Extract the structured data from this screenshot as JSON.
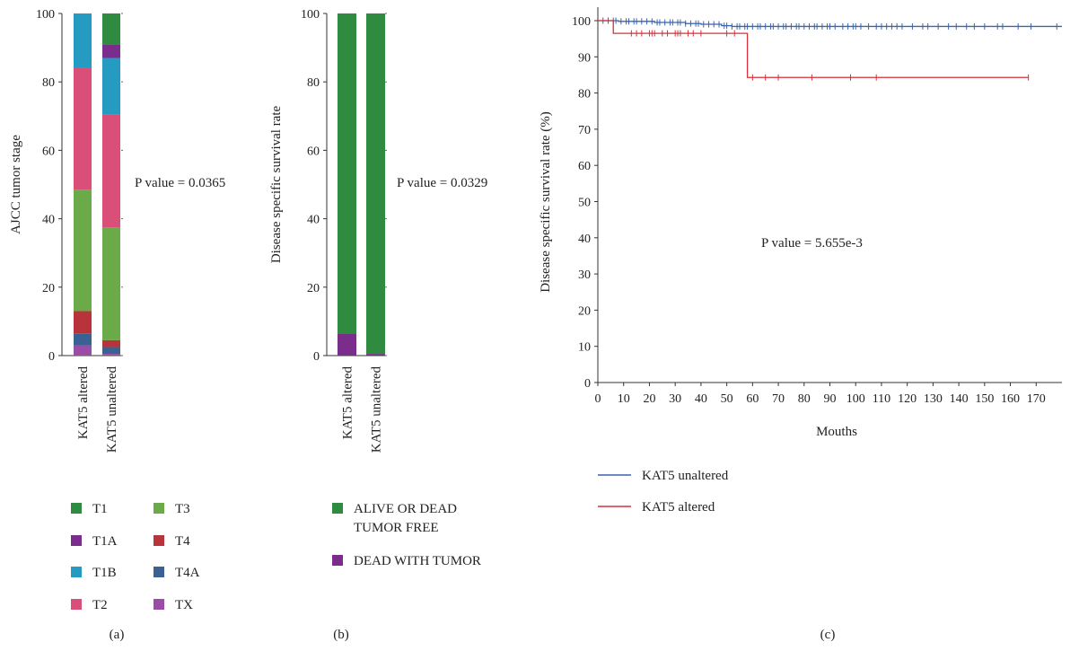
{
  "chart_data": [
    {
      "panel": "(a)",
      "type": "bar",
      "stacked": true,
      "ylabel": "AJCC tumor stage",
      "ylim": [
        0,
        100
      ],
      "yticks": [
        "0",
        "20",
        "40",
        "60",
        "80",
        "100"
      ],
      "categories": [
        "KAT5 altered",
        "KAT5 unaltered"
      ],
      "annotation": "P value = 0.0365",
      "legend": [
        {
          "label": "T1",
          "color": "#2e8b3f"
        },
        {
          "label": "T3",
          "color": "#6aaa48"
        },
        {
          "label": "T1A",
          "color": "#7b2d8b"
        },
        {
          "label": "T4",
          "color": "#b8343a"
        },
        {
          "label": "T1B",
          "color": "#259bc2"
        },
        {
          "label": "T4A",
          "color": "#3a6193"
        },
        {
          "label": "T2",
          "color": "#d94f7a"
        },
        {
          "label": "TX",
          "color": "#9a4ca6"
        }
      ],
      "series": [
        {
          "name": "TX",
          "color": "#9a4ca6",
          "values": [
            3,
            0.5
          ]
        },
        {
          "name": "T4A",
          "color": "#3a6193",
          "values": [
            3.5,
            2
          ]
        },
        {
          "name": "T4",
          "color": "#b8343a",
          "values": [
            6.5,
            2
          ]
        },
        {
          "name": "T3",
          "color": "#6aaa48",
          "values": [
            35.5,
            33
          ]
        },
        {
          "name": "T2",
          "color": "#d94f7a",
          "values": [
            35.5,
            33
          ]
        },
        {
          "name": "T1B",
          "color": "#259bc2",
          "values": [
            16,
            16.5
          ]
        },
        {
          "name": "T1A",
          "color": "#7b2d8b",
          "values": [
            0,
            4
          ]
        },
        {
          "name": "T1",
          "color": "#2e8b3f",
          "values": [
            0,
            9
          ]
        }
      ]
    },
    {
      "panel": "(b)",
      "type": "bar",
      "stacked": true,
      "ylabel": "Disease specific survival rate",
      "ylim": [
        0,
        100
      ],
      "yticks": [
        "0",
        "20",
        "40",
        "60",
        "80",
        "100"
      ],
      "categories": [
        "KAT5 altered",
        "KAT5 unaltered"
      ],
      "annotation": "P value = 0.0329",
      "legend": [
        {
          "label": "ALIVE OR DEAD TUMOR FREE",
          "lines": [
            "ALIVE OR DEAD",
            "TUMOR FREE"
          ],
          "color": "#2e8b3f"
        },
        {
          "label": "DEAD WITH TUMOR",
          "lines": [
            "DEAD WITH TUMOR"
          ],
          "color": "#7b2d8b"
        }
      ],
      "series": [
        {
          "name": "DEAD WITH TUMOR",
          "color": "#7b2d8b",
          "values": [
            6.5,
            0.5
          ]
        },
        {
          "name": "ALIVE OR DEAD TUMOR FREE",
          "color": "#2e8b3f",
          "values": [
            93.5,
            99.5
          ]
        }
      ]
    },
    {
      "panel": "(c)",
      "type": "line",
      "ylabel": "Disease specific survival rate (%)",
      "xlabel": "Mouths",
      "xlim": [
        0,
        180
      ],
      "ylim": [
        0,
        100
      ],
      "xticks": [
        "0",
        "10",
        "20",
        "30",
        "40",
        "50",
        "60",
        "70",
        "80",
        "90",
        "100",
        "110",
        "120",
        "130",
        "140",
        "150",
        "160",
        "170"
      ],
      "yticks": [
        "0",
        "10",
        "20",
        "30",
        "40",
        "50",
        "60",
        "70",
        "80",
        "90",
        "100"
      ],
      "annotation": "P value = 5.655e-3",
      "series": [
        {
          "name": "KAT5 unaltered",
          "color": "#3a64ad",
          "steps": [
            [
              0,
              100
            ],
            [
              8,
              99.8
            ],
            [
              22,
              99.5
            ],
            [
              34,
              99.2
            ],
            [
              40,
              99.0
            ],
            [
              48,
              98.6
            ],
            [
              52,
              98.4
            ],
            [
              180,
              98.4
            ]
          ],
          "censored": [
            2,
            4,
            6,
            7,
            9,
            11,
            12,
            14,
            15,
            17,
            19,
            21,
            23,
            24,
            26,
            28,
            29,
            31,
            32,
            34,
            36,
            38,
            39,
            41,
            43,
            45,
            47,
            49,
            50,
            52,
            54,
            55,
            57,
            58,
            60,
            62,
            63,
            65,
            67,
            68,
            70,
            72,
            73,
            75,
            77,
            78,
            80,
            82,
            84,
            85,
            87,
            89,
            90,
            92,
            95,
            97,
            99,
            100,
            102,
            105,
            108,
            110,
            112,
            114,
            116,
            118,
            122,
            126,
            128,
            132,
            136,
            139,
            143,
            146,
            150,
            155,
            157,
            163,
            168,
            178
          ]
        },
        {
          "name": "KAT5 altered",
          "color": "#d6313b",
          "steps": [
            [
              0,
              100
            ],
            [
              6,
              96.5
            ],
            [
              58,
              96.5
            ],
            [
              58,
              84.3
            ],
            [
              167,
              84.3
            ]
          ],
          "censored": [
            13,
            15,
            17,
            20,
            21,
            22,
            25,
            27,
            30,
            31,
            32,
            35,
            37,
            40,
            50,
            53,
            60,
            65,
            70,
            83,
            98,
            108,
            167
          ]
        }
      ]
    }
  ],
  "legend_c": [
    {
      "label": "KAT5 unaltered",
      "color": "#3a64ad"
    },
    {
      "label": "KAT5 altered",
      "color": "#d6313b"
    }
  ],
  "panel_labels": [
    "(a)",
    "(b)",
    "(c)"
  ]
}
